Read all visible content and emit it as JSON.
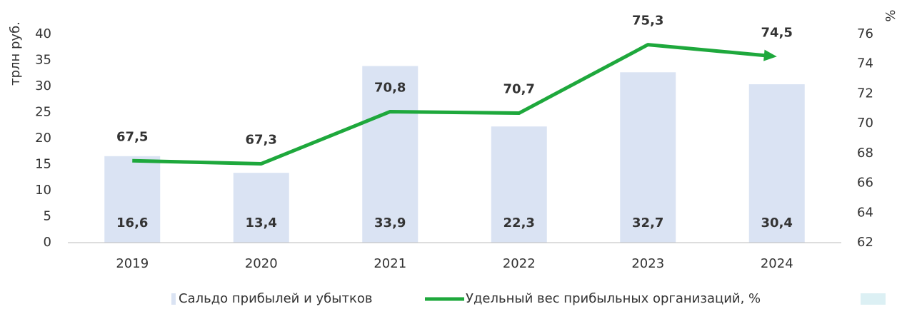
{
  "chart_data": {
    "type": "bar_line",
    "y_label": "трлн руб.",
    "y2_label": "%",
    "categories": [
      "2019",
      "2020",
      "2021",
      "2022",
      "2023",
      "2024"
    ],
    "ylim": [
      0,
      40
    ],
    "yticks": [
      0,
      5,
      10,
      15,
      20,
      25,
      30,
      35,
      40
    ],
    "y2lim": [
      62,
      76
    ],
    "y2ticks": [
      62,
      64,
      66,
      68,
      70,
      72,
      74,
      76
    ],
    "legend": "bottom",
    "series": [
      {
        "name": "Сальдо прибылей и убытков",
        "type": "bar",
        "color": "#dae3f3",
        "values": [
          16.6,
          13.4,
          33.9,
          22.3,
          32.7,
          30.4
        ],
        "value_labels": [
          "16,6",
          "13,4",
          "33,9",
          "22,3",
          "32,7",
          "30,4"
        ]
      },
      {
        "name": "Удельный вес прибыльных организаций, %",
        "type": "line",
        "axis": "y2",
        "color": "#1ea83c",
        "values": [
          67.5,
          67.3,
          70.8,
          70.7,
          75.3,
          74.5
        ],
        "value_labels": [
          "67,5",
          "67,3",
          "70,8",
          "70,7",
          "75,3",
          "74,5"
        ]
      }
    ]
  }
}
